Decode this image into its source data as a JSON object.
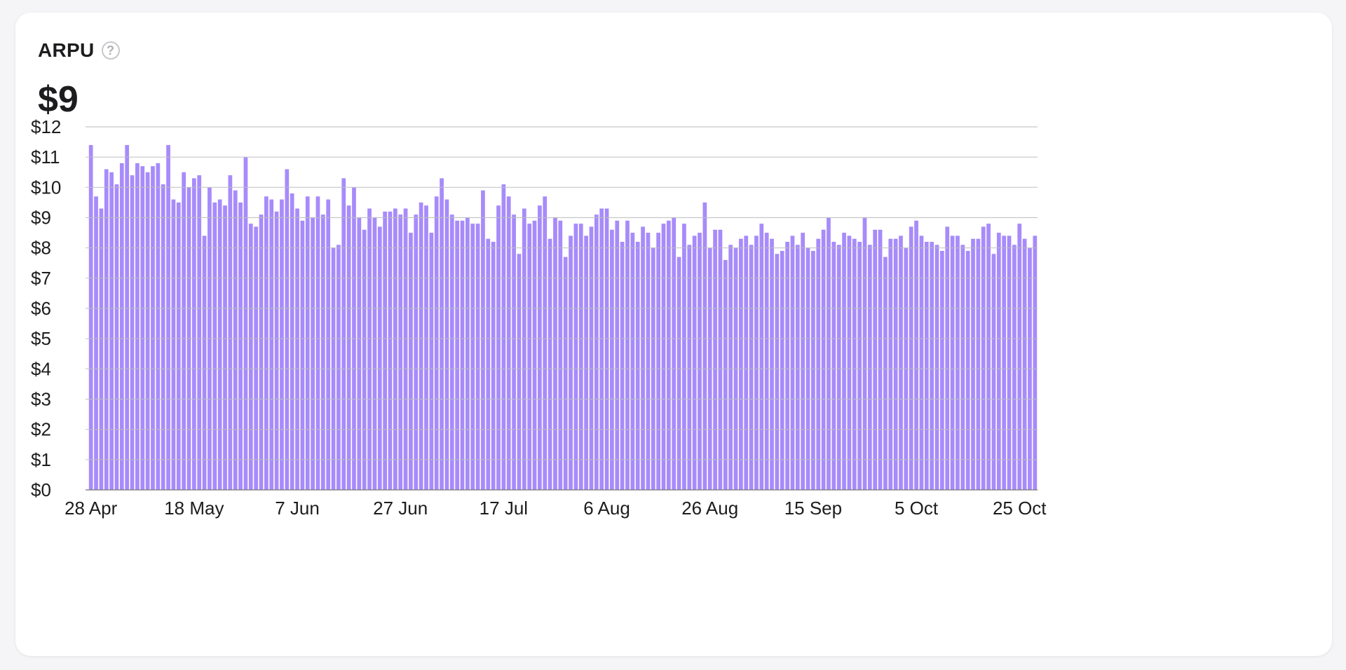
{
  "card": {
    "title": "ARPU",
    "value": "$9",
    "help_icon": "question-circle-icon"
  },
  "colors": {
    "bar": "#a78bfa",
    "grid": "#bdbdc2",
    "text": "#1d1d1f"
  },
  "chart_data": {
    "type": "bar",
    "title": "ARPU",
    "xlabel": "",
    "ylabel": "",
    "ylim": [
      0,
      12
    ],
    "y_ticks": [
      "$0",
      "$1",
      "$2",
      "$3",
      "$4",
      "$5",
      "$6",
      "$7",
      "$8",
      "$9",
      "$10",
      "$11",
      "$12"
    ],
    "x_start_date": "28 Apr",
    "x_ticks": [
      {
        "label": "28 Apr",
        "index": 0
      },
      {
        "label": "18 May",
        "index": 20
      },
      {
        "label": "7 Jun",
        "index": 40
      },
      {
        "label": "27 Jun",
        "index": 60
      },
      {
        "label": "17 Jul",
        "index": 80
      },
      {
        "label": "6 Aug",
        "index": 100
      },
      {
        "label": "26 Aug",
        "index": 120
      },
      {
        "label": "15 Sep",
        "index": 140
      },
      {
        "label": "5 Oct",
        "index": 160
      },
      {
        "label": "25 Oct",
        "index": 180
      }
    ],
    "grid": true,
    "legend": "none",
    "values": [
      11.4,
      9.7,
      9.3,
      10.6,
      10.5,
      10.1,
      10.8,
      11.4,
      10.4,
      10.8,
      10.7,
      10.5,
      10.7,
      10.8,
      10.1,
      11.4,
      9.6,
      9.5,
      10.5,
      10.0,
      10.3,
      10.4,
      8.4,
      10.0,
      9.5,
      9.6,
      9.4,
      10.4,
      9.9,
      9.5,
      11.0,
      8.8,
      8.7,
      9.1,
      9.7,
      9.6,
      9.2,
      9.6,
      10.6,
      9.8,
      9.3,
      8.9,
      9.7,
      9.0,
      9.7,
      9.1,
      9.6,
      8.0,
      8.1,
      10.3,
      9.4,
      10.0,
      9.0,
      8.6,
      9.3,
      9.0,
      8.7,
      9.2,
      9.2,
      9.3,
      9.1,
      9.3,
      8.5,
      9.1,
      9.5,
      9.4,
      8.5,
      9.7,
      10.3,
      9.6,
      9.1,
      8.9,
      8.9,
      9.0,
      8.8,
      8.8,
      9.9,
      8.3,
      8.2,
      9.4,
      10.1,
      9.7,
      9.1,
      7.8,
      9.3,
      8.8,
      8.9,
      9.4,
      9.7,
      8.3,
      9.0,
      8.9,
      7.7,
      8.4,
      8.8,
      8.8,
      8.4,
      8.7,
      9.1,
      9.3,
      9.3,
      8.6,
      8.9,
      8.2,
      8.9,
      8.5,
      8.2,
      8.7,
      8.5,
      8.0,
      8.5,
      8.8,
      8.9,
      9.0,
      7.7,
      8.8,
      8.1,
      8.4,
      8.5,
      9.5,
      8.0,
      8.6,
      8.6,
      7.6,
      8.1,
      8.0,
      8.3,
      8.4,
      8.1,
      8.4,
      8.8,
      8.5,
      8.3,
      7.8,
      7.9,
      8.2,
      8.4,
      8.1,
      8.5,
      8.0,
      7.9,
      8.3,
      8.6,
      9.0,
      8.2,
      8.1,
      8.5,
      8.4,
      8.3,
      8.2,
      9.0,
      8.1,
      8.6,
      8.6,
      7.7,
      8.3,
      8.3,
      8.4,
      8.0,
      8.7,
      8.9,
      8.4,
      8.2,
      8.2,
      8.1,
      7.9,
      8.7,
      8.4,
      8.4,
      8.1,
      7.9,
      8.3,
      8.3,
      8.7,
      8.8,
      7.8,
      8.5,
      8.4,
      8.4,
      8.1,
      8.8,
      8.3,
      8.0,
      8.4
    ]
  }
}
